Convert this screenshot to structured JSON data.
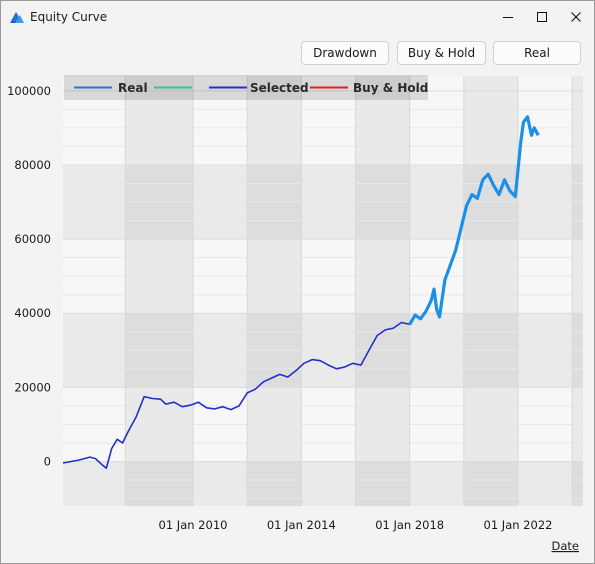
{
  "window": {
    "title": "Equity Curve",
    "controls": {
      "minimize": "minimize-icon",
      "maximize": "maximize-icon",
      "close": "close-icon"
    }
  },
  "toolbar": {
    "drawdown_label": "Drawdown",
    "buyhold_label": "Buy & Hold",
    "real_label": "Real"
  },
  "chart_data": {
    "type": "line",
    "legend_position": "top-left",
    "grid": true,
    "xlabel": "Date",
    "ylabel": "",
    "xlim": [
      2005.2,
      2024.4
    ],
    "ylim": [
      -12000,
      104000
    ],
    "y_ticks": [
      0,
      20000,
      40000,
      60000,
      80000,
      100000
    ],
    "x_ticks": [
      {
        "value": 2010.0,
        "label": "01 Jan 2010"
      },
      {
        "value": 2014.0,
        "label": "01 Jan 2014"
      },
      {
        "value": 2018.0,
        "label": "01 Jan 2018"
      },
      {
        "value": 2022.0,
        "label": "01 Jan 2022"
      }
    ],
    "legend": [
      {
        "name": "Real",
        "color": "#2f6fe0"
      },
      {
        "name": "",
        "color": "#2ec4a0"
      },
      {
        "name": "Selected",
        "color": "#2130c8"
      },
      {
        "name": "Buy & Hold",
        "color": "#e0201c"
      }
    ],
    "series": [
      {
        "name": "Selected",
        "color": "#2130c8",
        "x": [
          2005.2,
          2005.5,
          2005.8,
          2006.2,
          2006.4,
          2006.6,
          2006.8,
          2007.0,
          2007.2,
          2007.4,
          2007.6,
          2007.9,
          2008.2,
          2008.5,
          2008.8,
          2009.0,
          2009.3,
          2009.6,
          2009.9,
          2010.2,
          2010.5,
          2010.8,
          2011.1,
          2011.4,
          2011.7,
          2012.0,
          2012.3,
          2012.6,
          2012.9,
          2013.2,
          2013.5,
          2013.8,
          2014.1,
          2014.4,
          2014.7,
          2015.0,
          2015.3,
          2015.6,
          2015.9,
          2016.2,
          2016.5,
          2016.8,
          2017.1,
          2017.4,
          2017.7,
          2018.0
        ],
        "y": [
          -400,
          0,
          400,
          1200,
          800,
          -600,
          -1800,
          3500,
          6000,
          5000,
          8000,
          12000,
          17500,
          17000,
          16800,
          15500,
          16000,
          14800,
          15200,
          16000,
          14500,
          14200,
          14800,
          14000,
          15000,
          18500,
          19500,
          21500,
          22500,
          23500,
          22800,
          24500,
          26500,
          27500,
          27200,
          26000,
          25000,
          25500,
          26500,
          26000,
          30000,
          34000,
          35500,
          36000,
          37500,
          37000
        ]
      },
      {
        "name": "Real",
        "color": "#1e8fe6",
        "x": [
          2018.0,
          2018.2,
          2018.4,
          2018.6,
          2018.8,
          2018.9,
          2019.0,
          2019.1,
          2019.3,
          2019.5,
          2019.7,
          2019.9,
          2020.1,
          2020.3,
          2020.5,
          2020.7,
          2020.9,
          2021.1,
          2021.3,
          2021.5,
          2021.7,
          2021.9,
          2022.1,
          2022.2,
          2022.35,
          2022.5,
          2022.6,
          2022.75
        ],
        "y": [
          37000,
          39500,
          38500,
          40500,
          43500,
          46500,
          41000,
          39000,
          49000,
          53000,
          57000,
          63000,
          69000,
          72000,
          71000,
          76000,
          77500,
          74500,
          72000,
          76000,
          73000,
          71500,
          86000,
          91500,
          93000,
          88000,
          90000,
          88000
        ]
      }
    ]
  }
}
